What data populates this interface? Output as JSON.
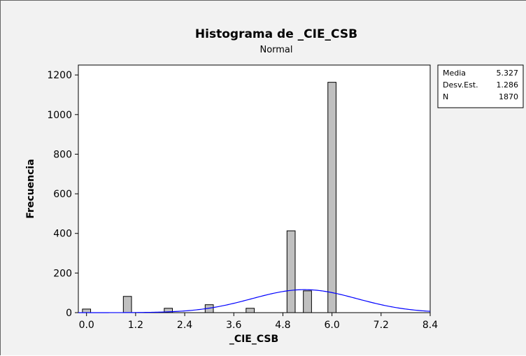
{
  "chart_data": {
    "type": "bar",
    "title": "Histograma de _CIE_CSB",
    "subtitle": "Normal",
    "xlabel": "_CIE_CSB",
    "ylabel": "Frecuencia",
    "xlim": [
      -0.2,
      8.4
    ],
    "ylim": [
      0,
      1250
    ],
    "x_ticks": [
      "0.0",
      "1.2",
      "2.4",
      "3.6",
      "4.8",
      "6.0",
      "7.2",
      "8.4"
    ],
    "y_ticks": [
      "0",
      "200",
      "400",
      "600",
      "800",
      "1000",
      "1200"
    ],
    "bin_width": 0.2,
    "bins": [
      {
        "x": 0.0,
        "count": 18
      },
      {
        "x": 1.0,
        "count": 82
      },
      {
        "x": 2.0,
        "count": 22
      },
      {
        "x": 3.0,
        "count": 40
      },
      {
        "x": 4.0,
        "count": 22
      },
      {
        "x": 5.0,
        "count": 413
      },
      {
        "x": 5.4,
        "count": 110
      },
      {
        "x": 6.0,
        "count": 1163
      }
    ],
    "normal_fit": {
      "mean": 5.327,
      "sd": 1.286,
      "n": 1870,
      "color": "#0000ff"
    },
    "bar_color": "#c0c0c0",
    "stats_box": [
      {
        "label": "Media",
        "value": "5.327"
      },
      {
        "label": "Desv.Est.",
        "value": "1.286"
      },
      {
        "label": "N",
        "value": "1870"
      }
    ],
    "grid": false,
    "legend": "right"
  }
}
